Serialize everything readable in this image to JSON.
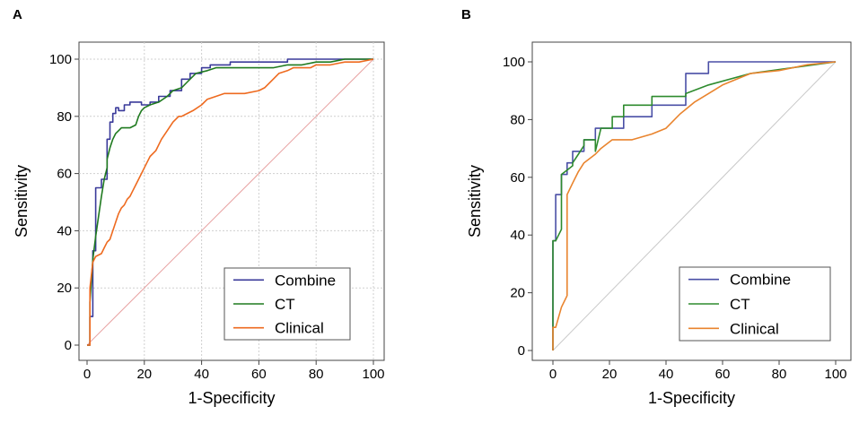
{
  "panels": [
    {
      "letter": "A",
      "chart_data": {
        "type": "line",
        "xlabel": "1-Specificity",
        "ylabel": "Sensitivity",
        "xlim": [
          0,
          100
        ],
        "ylim": [
          0,
          100
        ],
        "xticks": [
          0,
          20,
          40,
          60,
          80,
          100
        ],
        "yticks": [
          0,
          20,
          40,
          60,
          80,
          100
        ],
        "grid": true,
        "legend_position": "bottom-right",
        "reference_line": {
          "color": "#e8a3a3"
        },
        "series": [
          {
            "name": "Combine",
            "color": "#3a3a9a",
            "x": [
              0,
              1,
              1,
              2,
              2,
              3,
              3,
              5,
              5,
              7,
              7,
              8,
              8,
              9,
              9,
              10,
              10,
              11,
              11,
              13,
              13,
              15,
              15,
              19,
              19,
              22,
              22,
              25,
              25,
              27,
              27,
              29,
              29,
              33,
              33,
              36,
              36,
              40,
              40,
              43,
              43,
              50,
              50,
              70,
              70,
              90,
              90,
              100
            ],
            "y": [
              0,
              0,
              10,
              10,
              33,
              33,
              55,
              55,
              58,
              58,
              72,
              72,
              78,
              78,
              81,
              81,
              83,
              83,
              82,
              82,
              84,
              84,
              85,
              85,
              84,
              84,
              85,
              85,
              87,
              87,
              87,
              87,
              89,
              89,
              93,
              93,
              95,
              95,
              97,
              97,
              98,
              98,
              99,
              99,
              100,
              100,
              100,
              100
            ]
          },
          {
            "name": "CT",
            "color": "#1f7a1f",
            "x": [
              0,
              1,
              1,
              2,
              3,
              4,
              5,
              6,
              7,
              7,
              8,
              9,
              10,
              11,
              12,
              15,
              17,
              18,
              19,
              20,
              22,
              25,
              28,
              30,
              33,
              35,
              38,
              42,
              45,
              50,
              55,
              60,
              65,
              70,
              75,
              80,
              85,
              90,
              95,
              100
            ],
            "y": [
              0,
              0,
              15,
              30,
              38,
              45,
              52,
              58,
              62,
              65,
              69,
              72,
              74,
              75,
              76,
              76,
              77,
              80,
              82,
              83,
              84,
              85,
              87,
              89,
              90,
              92,
              95,
              96,
              97,
              97,
              97,
              97,
              97,
              98,
              98,
              99,
              99,
              100,
              100,
              100
            ]
          },
          {
            "name": "Clinical",
            "color": "#ee6a1f",
            "x": [
              0,
              1,
              1,
              2,
              3,
              5,
              6,
              7,
              8,
              9,
              10,
              11,
              12,
              13,
              14,
              15,
              16,
              17,
              18,
              19,
              20,
              21,
              22,
              24,
              26,
              28,
              30,
              32,
              33,
              35,
              37,
              40,
              42,
              45,
              48,
              50,
              55,
              60,
              62,
              65,
              67,
              70,
              72,
              75,
              78,
              80,
              85,
              90,
              95,
              100
            ],
            "y": [
              0,
              0,
              20,
              29,
              31,
              32,
              34,
              36,
              37,
              40,
              43,
              46,
              48,
              49,
              51,
              52,
              54,
              56,
              58,
              60,
              62,
              64,
              66,
              68,
              72,
              75,
              78,
              80,
              80,
              81,
              82,
              84,
              86,
              87,
              88,
              88,
              88,
              89,
              90,
              93,
              95,
              96,
              97,
              97,
              97,
              98,
              98,
              99,
              99,
              100
            ]
          }
        ]
      }
    },
    {
      "letter": "B",
      "chart_data": {
        "type": "line",
        "xlabel": "1-Specificity",
        "ylabel": "Sensitivity",
        "xlim": [
          0,
          100
        ],
        "ylim": [
          0,
          100
        ],
        "xticks": [
          0,
          20,
          40,
          60,
          80,
          100
        ],
        "yticks": [
          0,
          20,
          40,
          60,
          80,
          100
        ],
        "grid": false,
        "legend_position": "bottom-right",
        "reference_line": {
          "color": "#c8c8c8"
        },
        "series": [
          {
            "name": "Combine",
            "color": "#4a4fa6",
            "x": [
              0,
              0,
              1,
              1,
              3,
              3,
              5,
              5,
              7,
              7,
              11,
              11,
              15,
              15,
              17,
              17,
              21,
              21,
              25,
              25,
              35,
              35,
              47,
              47,
              51,
              51,
              55,
              55,
              100
            ],
            "y": [
              0,
              38,
              38,
              54,
              54,
              61,
              61,
              65,
              65,
              69,
              69,
              73,
              73,
              77,
              77,
              77,
              77,
              77,
              77,
              81,
              81,
              85,
              85,
              96,
              96,
              96,
              96,
              100,
              100
            ]
          },
          {
            "name": "CT",
            "color": "#2e8b2e",
            "x": [
              0,
              0,
              1,
              3,
              3,
              7,
              7,
              9,
              11,
              11,
              15,
              15,
              17,
              19,
              21,
              21,
              25,
              25,
              35,
              35,
              40,
              47,
              47,
              55,
              70,
              100
            ],
            "y": [
              0,
              38,
              38,
              42,
              61,
              64,
              65,
              68,
              71,
              73,
              73,
              69,
              77,
              77,
              77,
              81,
              81,
              85,
              85,
              88,
              88,
              88,
              89,
              92,
              96,
              100
            ]
          },
          {
            "name": "Clinical",
            "color": "#e9842e",
            "x": [
              0,
              0,
              1,
              3,
              5,
              5,
              7,
              9,
              11,
              15,
              17,
              21,
              25,
              28,
              35,
              40,
              45,
              50,
              55,
              60,
              65,
              70,
              80,
              90,
              100
            ],
            "y": [
              0,
              8,
              8,
              15,
              19,
              54,
              58,
              62,
              65,
              68,
              70,
              73,
              73,
              73,
              75,
              77,
              82,
              86,
              89,
              92,
              94,
              96,
              97,
              99,
              100
            ]
          }
        ]
      }
    }
  ]
}
